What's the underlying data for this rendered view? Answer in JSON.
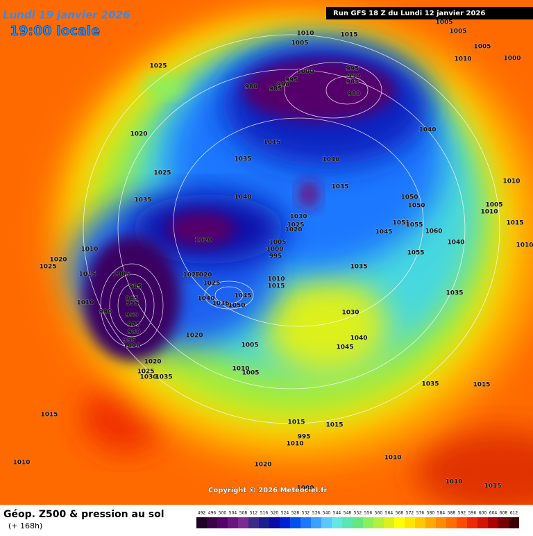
{
  "header": {
    "date": "Lundi 19 janvier 2026",
    "time": "19:00 locale",
    "run": "Run GFS 18 Z du Lundi 12 janvier 2026"
  },
  "footer": {
    "title": "Géop. Z500 & pression au sol",
    "lead": "(+ 168h)",
    "copyright": "Copyright © 2026 Meteociel.fr"
  },
  "scale": {
    "ticks": [
      492,
      496,
      500,
      504,
      508,
      512,
      516,
      520,
      524,
      528,
      532,
      536,
      540,
      544,
      548,
      552,
      556,
      560,
      564,
      568,
      572,
      576,
      580,
      584,
      588,
      592,
      596,
      600,
      604,
      608,
      612
    ],
    "colors": [
      "#20002a",
      "#3a0048",
      "#55006a",
      "#6a1482",
      "#7c2a94",
      "#3c2a8a",
      "#1c1c8c",
      "#0a0aa8",
      "#0020d8",
      "#0050f0",
      "#1e78ff",
      "#3ca0ff",
      "#5ac8ff",
      "#64e6e6",
      "#5ae6b4",
      "#64e682",
      "#8cf05a",
      "#b4f03c",
      "#dcf01e",
      "#ffff00",
      "#ffe600",
      "#ffc800",
      "#ffaa00",
      "#ff8c00",
      "#ff6e00",
      "#ff4b00",
      "#f02800",
      "#d21400",
      "#aa0000",
      "#780000",
      "#3c0000"
    ]
  },
  "isobars": [
    "1010",
    "1015",
    "1005",
    "1005",
    "1005",
    "1005",
    "1010",
    "1000",
    "1025",
    "995",
    "990",
    "985",
    "980",
    "1000",
    "995",
    "990",
    "985",
    "980",
    "1020",
    "1015",
    "1040",
    "1035",
    "1040",
    "1025",
    "1035",
    "1010",
    "1035",
    "1040",
    "1050",
    "1050",
    "1005",
    "1010",
    "1015",
    "1030",
    "1025",
    "1020",
    "1051",
    "1055",
    "1045",
    "1060",
    "1020",
    "1005",
    "1000",
    "995",
    "1040",
    "1010",
    "1010",
    "1055",
    "1020",
    "1025",
    "1035",
    "1015",
    "1005",
    "1025",
    "1020",
    "1010",
    "1015",
    "985",
    "1025",
    "1035",
    "1010",
    "965",
    "955",
    "1040",
    "1045",
    "1050",
    "1036",
    "990",
    "950",
    "1030",
    "975",
    "980",
    "1020",
    "1040",
    "995",
    "1005",
    "1045",
    "1000",
    "1020",
    "1010",
    "1025",
    "1030",
    "1035",
    "1005",
    "1035",
    "1015",
    "1015",
    "1015",
    "1015",
    "1000",
    "995",
    "1010",
    "1010",
    "1020",
    "1010",
    "1010",
    "1015"
  ]
}
